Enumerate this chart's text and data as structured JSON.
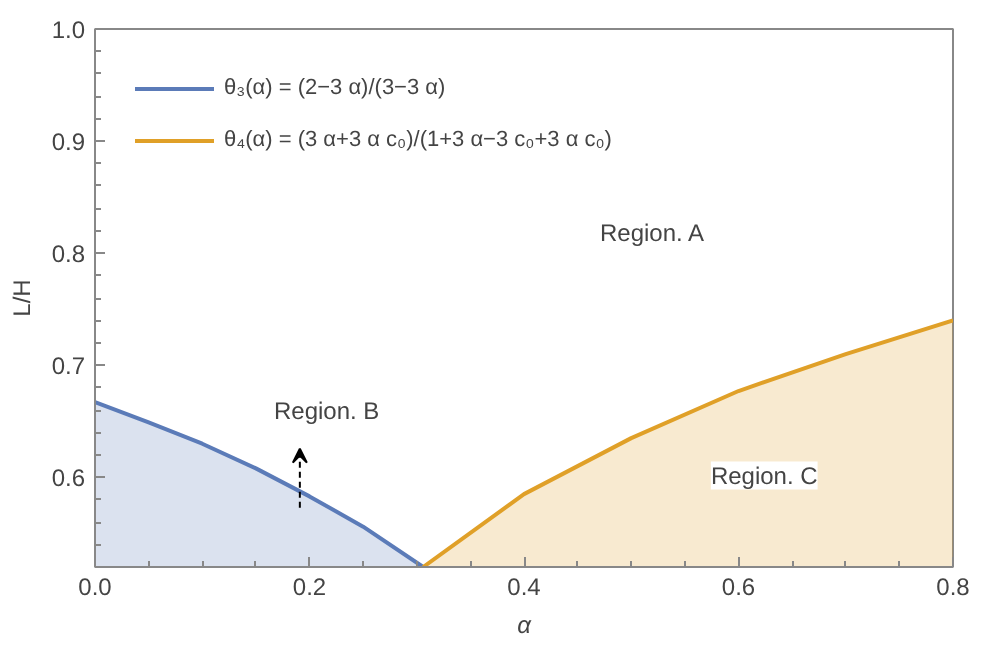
{
  "chart_data": {
    "type": "area",
    "xlabel": "α",
    "ylabel": "L/H",
    "xlim": [
      0,
      0.8
    ],
    "ylim": [
      0.52,
      1.0
    ],
    "xticks": [
      {
        "value": 0,
        "label": "0.0"
      },
      0.2,
      0.4,
      0.6,
      0.8
    ],
    "yticks": [
      0.6,
      0.7,
      0.8,
      0.9,
      {
        "value": 1,
        "label": "1.0"
      }
    ],
    "grid": false,
    "legend": "top left",
    "series": [
      {
        "name": "θ₃(α) = (2−3 α)/(3−3 α)",
        "color": "#5b7bb8",
        "x": [
          0,
          0.05,
          0.1,
          0.15,
          0.2,
          0.25,
          0.306
        ],
        "values": [
          0.667,
          0.649,
          0.63,
          0.608,
          0.583,
          0.556,
          0.52
        ]
      },
      {
        "name": "θ₄(α) = (3 α+3 α c₀)/(1+3 α−3 c₀+3 α c₀)",
        "color": "#e0a028",
        "x": [
          0.306,
          0.4,
          0.5,
          0.6,
          0.7,
          0.8
        ],
        "values": [
          0.52,
          0.585,
          0.635,
          0.677,
          0.71,
          0.74
        ]
      }
    ],
    "annotations": [
      "Region. A",
      "Region. B",
      "Region. C"
    ]
  }
}
